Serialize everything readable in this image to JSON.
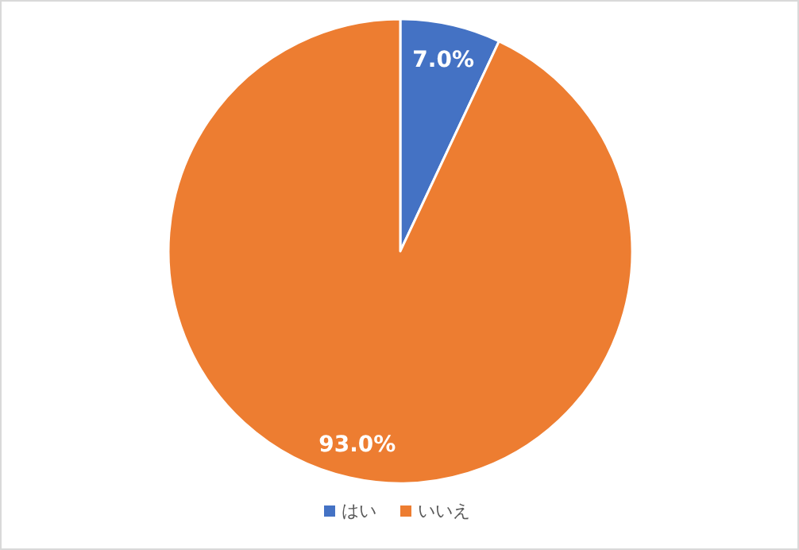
{
  "chart_data": {
    "type": "pie",
    "categories": [
      "はい",
      "いいえ"
    ],
    "values": [
      7.0,
      93.0
    ],
    "colors": [
      "#4472c4",
      "#ed7d31"
    ],
    "value_labels": [
      "7.0%",
      "93.0%"
    ],
    "legend": "bottom"
  }
}
